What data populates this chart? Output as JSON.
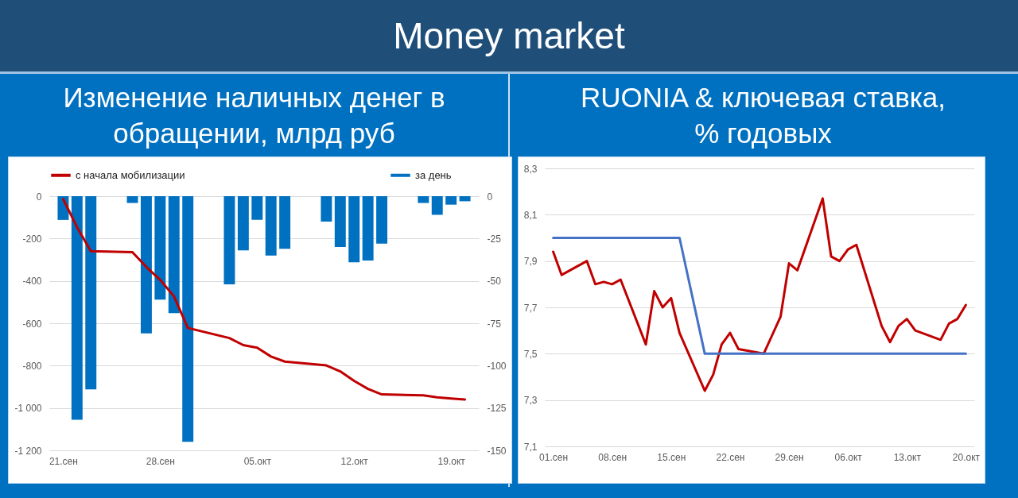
{
  "chart_data": [
    {
      "type": "other",
      "title": "Money market"
    },
    {
      "type": "line",
      "title": "Изменение наличных денег в обращении, млрд руб",
      "x": [
        "--09-21",
        "--09-22",
        "--09-23",
        "--09-26",
        "--09-27",
        "--09-28",
        "--09-29",
        "--09-30",
        "--10-03",
        "--10-04",
        "--10-05",
        "--10-06",
        "--10-07",
        "--10-10",
        "--10-11",
        "--10-12",
        "--10-13",
        "--10-14",
        "--10-17",
        "--10-18",
        "--10-19",
        "--10-20"
      ],
      "series": [
        {
          "name": "с начала мобилизации",
          "type": "line",
          "color": "#c00000",
          "values": [
            -14,
            -146,
            -260,
            -264,
            -334,
            -395,
            -473,
            -622,
            -670,
            -703,
            -715,
            -757,
            -781,
            -799,
            -827,
            -872,
            -910,
            -936,
            -940,
            -950,
            -955,
            -960
          ]
        },
        {
          "name": "за день",
          "type": "bar",
          "axis": "y2",
          "color": "#0070c0",
          "values": [
            -14,
            -132,
            -114,
            -4,
            -81,
            -61,
            -69,
            -145,
            -52,
            -32,
            -14,
            -35,
            -31,
            -15,
            -30,
            -39,
            -38,
            -28,
            -4,
            -11,
            -5,
            -3
          ]
        }
      ],
      "xlim": [
        "--09-20",
        "--10-21"
      ],
      "xticks": [
        {
          "value": "--09-21",
          "label": "21.сен"
        },
        {
          "value": "--09-28",
          "label": "28.сен"
        },
        {
          "value": "--10-05",
          "label": "05.окт"
        },
        {
          "value": "--10-12",
          "label": "12.окт"
        },
        {
          "value": "--10-19",
          "label": "19.окт"
        }
      ],
      "ylim": [
        -1200,
        0
      ],
      "yticks": [
        0,
        -200,
        -400,
        -600,
        -800,
        {
          "value": -1000,
          "label": "-1 000"
        },
        {
          "value": -1200,
          "label": "-1 200"
        }
      ],
      "y2lim": [
        -150,
        0
      ],
      "y2ticks": [
        0,
        -25,
        -50,
        -75,
        -100,
        -125,
        -150
      ],
      "grid": "y",
      "legend": "top"
    },
    {
      "type": "line",
      "title": "RUONIA & ключевая ставка, % годовых",
      "x": [
        "--09-01",
        "--09-02",
        "--09-05",
        "--09-06",
        "--09-07",
        "--09-08",
        "--09-09",
        "--09-12",
        "--09-13",
        "--09-14",
        "--09-15",
        "--09-16",
        "--09-19",
        "--09-20",
        "--09-21",
        "--09-22",
        "--09-23",
        "--09-26",
        "--09-27",
        "--09-28",
        "--09-29",
        "--09-30",
        "--10-03",
        "--10-04",
        "--10-05",
        "--10-06",
        "--10-07",
        "--10-10",
        "--10-11",
        "--10-12",
        "--10-13",
        "--10-14",
        "--10-17",
        "--10-18",
        "--10-19",
        "--10-20"
      ],
      "series": [
        {
          "color": "#c00000",
          "values": [
            7.94,
            7.84,
            7.9,
            7.8,
            7.81,
            7.8,
            7.82,
            7.54,
            7.77,
            7.7,
            7.74,
            7.59,
            7.34,
            7.41,
            7.54,
            7.59,
            7.52,
            7.5,
            7.58,
            7.66,
            7.89,
            7.86,
            8.17,
            7.92,
            7.9,
            7.95,
            7.97,
            7.62,
            7.55,
            7.62,
            7.65,
            7.6,
            7.56,
            7.63,
            7.65,
            7.71
          ]
        },
        {
          "color": "#4472c4",
          "values": [
            8,
            8,
            8,
            8,
            8,
            8,
            8,
            8,
            8,
            8,
            8,
            8,
            7.5,
            7.5,
            7.5,
            7.5,
            7.5,
            7.5,
            7.5,
            7.5,
            7.5,
            7.5,
            7.5,
            7.5,
            7.5,
            7.5,
            7.5,
            7.5,
            7.5,
            7.5,
            7.5,
            7.5,
            7.5,
            7.5,
            7.5,
            7.5
          ]
        }
      ],
      "xlim": [
        "--08-31",
        "--10-21"
      ],
      "xticks": [
        {
          "value": "--09-01",
          "label": "01.сен"
        },
        {
          "value": "--09-08",
          "label": "08.сен"
        },
        {
          "value": "--09-15",
          "label": "15.сен"
        },
        {
          "value": "--09-22",
          "label": "22.сен"
        },
        {
          "value": "--09-29",
          "label": "29.сен"
        },
        {
          "value": "--10-06",
          "label": "06.окт"
        },
        {
          "value": "--10-13",
          "label": "13.окт"
        },
        {
          "value": "--10-20",
          "label": "20.окт"
        }
      ],
      "ylim": [
        7.1,
        8.3
      ],
      "yticks": [
        {
          "value": 7.1,
          "label": "7,1"
        },
        {
          "value": 7.3,
          "label": "7,3"
        },
        {
          "value": 7.5,
          "label": "7,5"
        },
        {
          "value": 7.7,
          "label": "7,7"
        },
        {
          "value": 7.9,
          "label": "7,9"
        },
        {
          "value": 8.1,
          "label": "8,1"
        },
        {
          "value": 8.3,
          "label": "8,3"
        }
      ],
      "grid": "y"
    }
  ]
}
